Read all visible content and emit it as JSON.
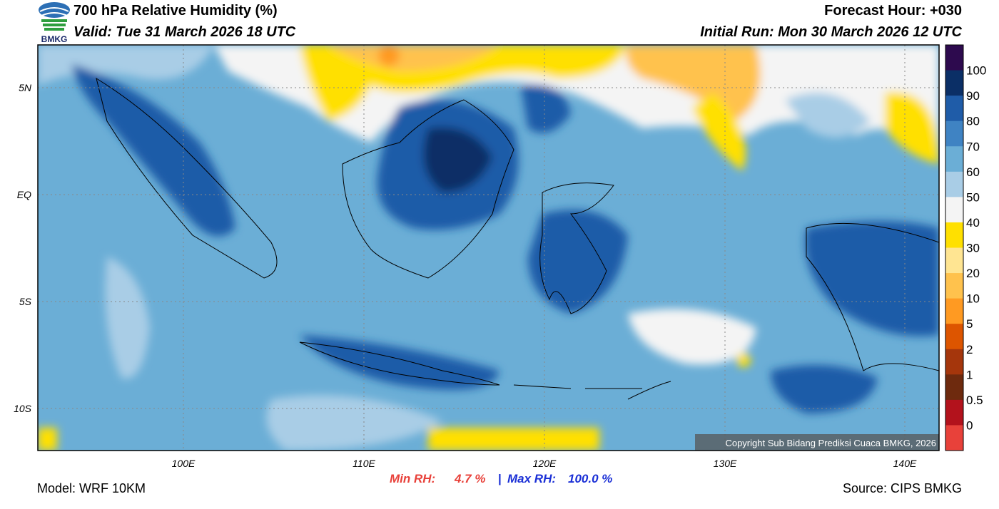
{
  "header": {
    "title": "700 hPa Relative Humidity (%)",
    "valid": "Valid: Tue 31 March 2026 18 UTC",
    "forecast_hour": "Forecast Hour: +030",
    "initial_run": "Initial Run: Mon 30 March 2026 12 UTC",
    "logo_text": "BMKG"
  },
  "map": {
    "lat_labels": [
      "5N",
      "EQ",
      "5S",
      "10S"
    ],
    "lon_labels": [
      "100E",
      "110E",
      "120E",
      "130E",
      "140E"
    ],
    "copyright": "Copyright Sub Bidang Prediksi Cuaca BMKG, 2026"
  },
  "colorbar": {
    "labels": [
      "100",
      "90",
      "80",
      "70",
      "60",
      "50",
      "40",
      "30",
      "20",
      "10",
      "5",
      "2",
      "1",
      "0.5",
      "0"
    ],
    "colors": [
      "#2d0a4e",
      "#0b2f66",
      "#1f5ca8",
      "#3f83c3",
      "#6baed6",
      "#a9cde6",
      "#f4f4f4",
      "#ffe000",
      "#ffe592",
      "#ffc24d",
      "#ff9a22",
      "#dd5500",
      "#a5360c",
      "#6e2a0e",
      "#b3121c",
      "#e8413a"
    ]
  },
  "footer": {
    "model": "Model: WRF 10KM",
    "min_label": "Min RH:",
    "min_value": "4.7 %",
    "separator": "|",
    "max_label": "Max RH:",
    "max_value": "100.0 %",
    "source": "Source: CIPS BMKG"
  }
}
